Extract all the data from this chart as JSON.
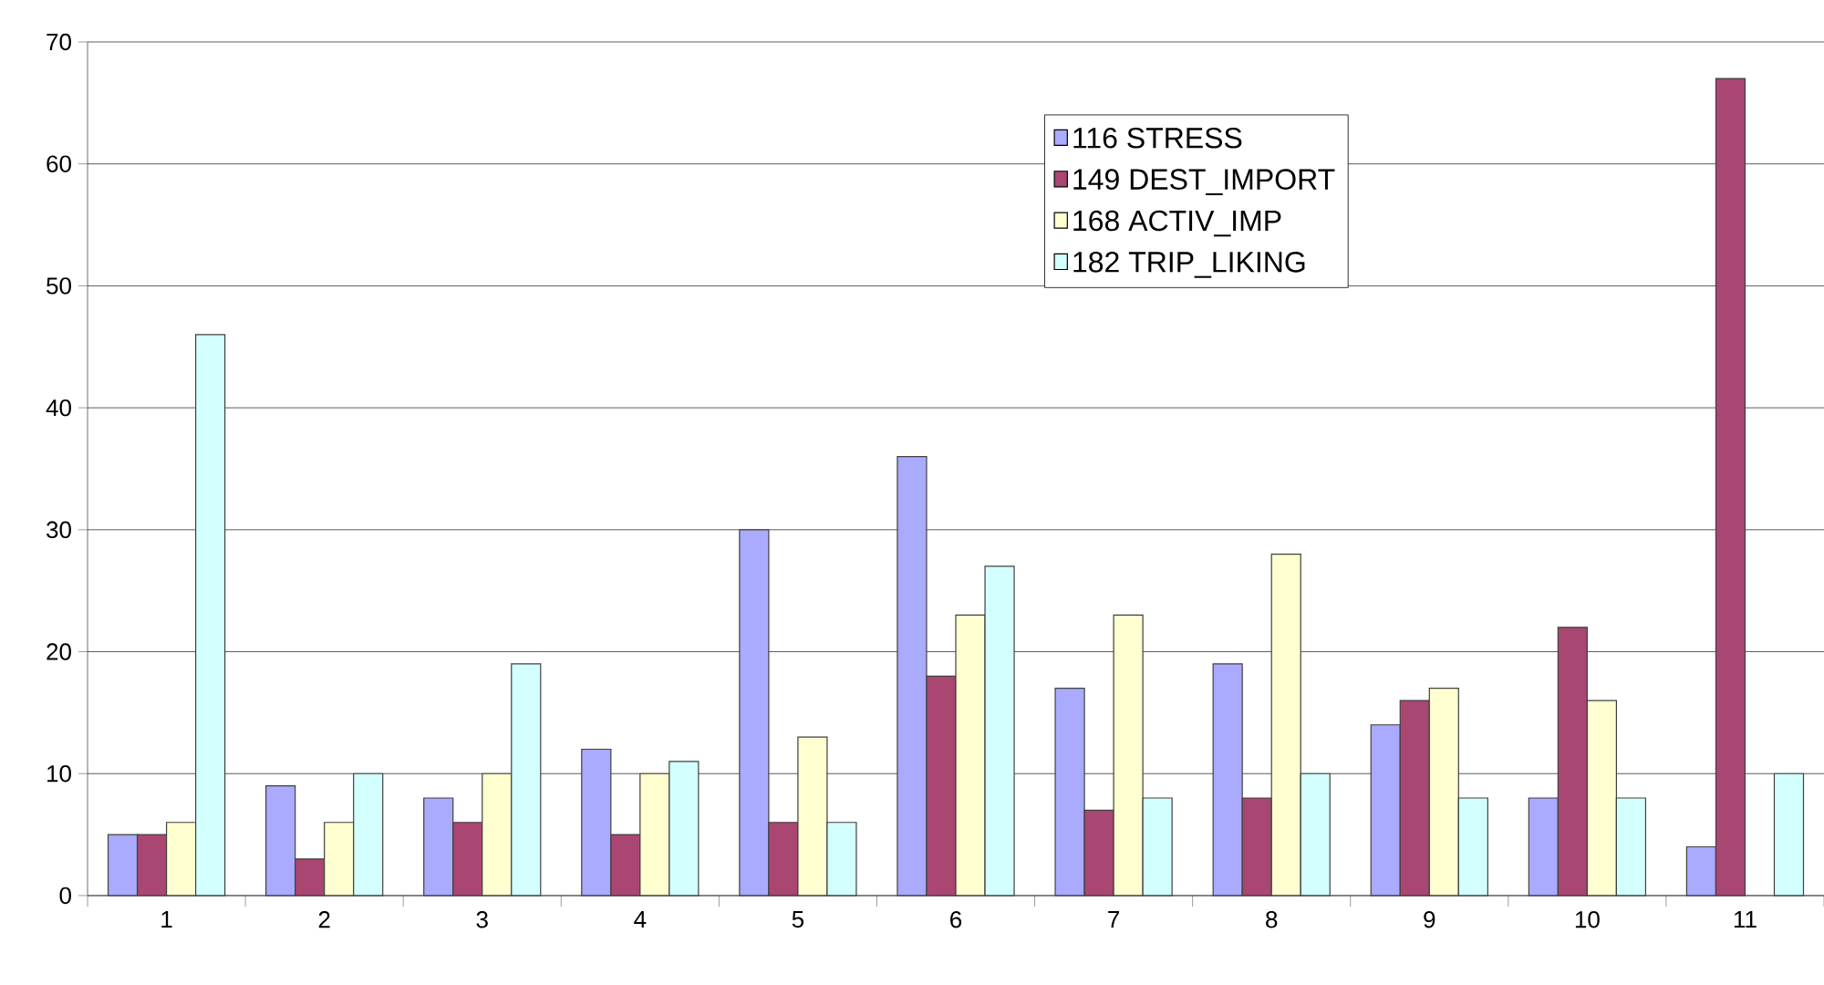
{
  "chart_data": {
    "type": "bar",
    "categories": [
      "1",
      "2",
      "3",
      "4",
      "5",
      "6",
      "7",
      "8",
      "9",
      "10",
      "11"
    ],
    "series": [
      {
        "name": "116 STRESS",
        "color": "#aaaaff",
        "values": [
          5,
          9,
          8,
          12,
          30,
          36,
          17,
          19,
          14,
          8,
          4
        ]
      },
      {
        "name": "149 DEST_IMPORT",
        "color": "#a94672",
        "values": [
          5,
          3,
          6,
          5,
          6,
          18,
          7,
          8,
          16,
          22,
          67
        ]
      },
      {
        "name": "168 ACTIV_IMP",
        "color": "#ffffd0",
        "values": [
          6,
          6,
          10,
          10,
          13,
          23,
          23,
          28,
          17,
          16,
          null
        ]
      },
      {
        "name": "182 TRIP_LIKING",
        "color": "#d4ffff",
        "values": [
          46,
          10,
          19,
          11,
          6,
          27,
          8,
          10,
          8,
          8,
          10
        ]
      }
    ],
    "ylim": [
      0,
      70
    ],
    "yticks": [
      0,
      10,
      20,
      30,
      40,
      50,
      60,
      70
    ],
    "grid": "y",
    "legend": "top right"
  }
}
